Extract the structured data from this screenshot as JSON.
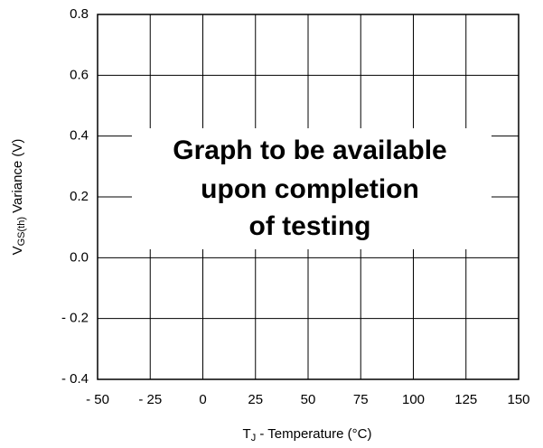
{
  "chart_data": {
    "type": "line",
    "xlabel": {
      "main": "T",
      "sub": "J",
      "rest": " -  Temperature (°C)"
    },
    "ylabel": {
      "main": "V",
      "sub": "GS(th)",
      "rest": " Variance (V)"
    },
    "annotation": [
      "Graph to be available",
      "upon completion",
      "of testing"
    ],
    "xlim": [
      -50,
      150
    ],
    "xticks": [
      {
        "value": -50,
        "label": "- 50"
      },
      {
        "value": -25,
        "label": "- 25"
      },
      0,
      25,
      50,
      75,
      100,
      125,
      150
    ],
    "ylim": [
      -0.4,
      0.8
    ],
    "yticks": [
      {
        "value": -0.4,
        "label": "- 0.4"
      },
      {
        "value": -0.2,
        "label": "- 0.2"
      },
      {
        "value": 0,
        "label": "0.0"
      },
      0.2,
      0.4,
      0.6,
      0.8
    ],
    "grid": true
  }
}
